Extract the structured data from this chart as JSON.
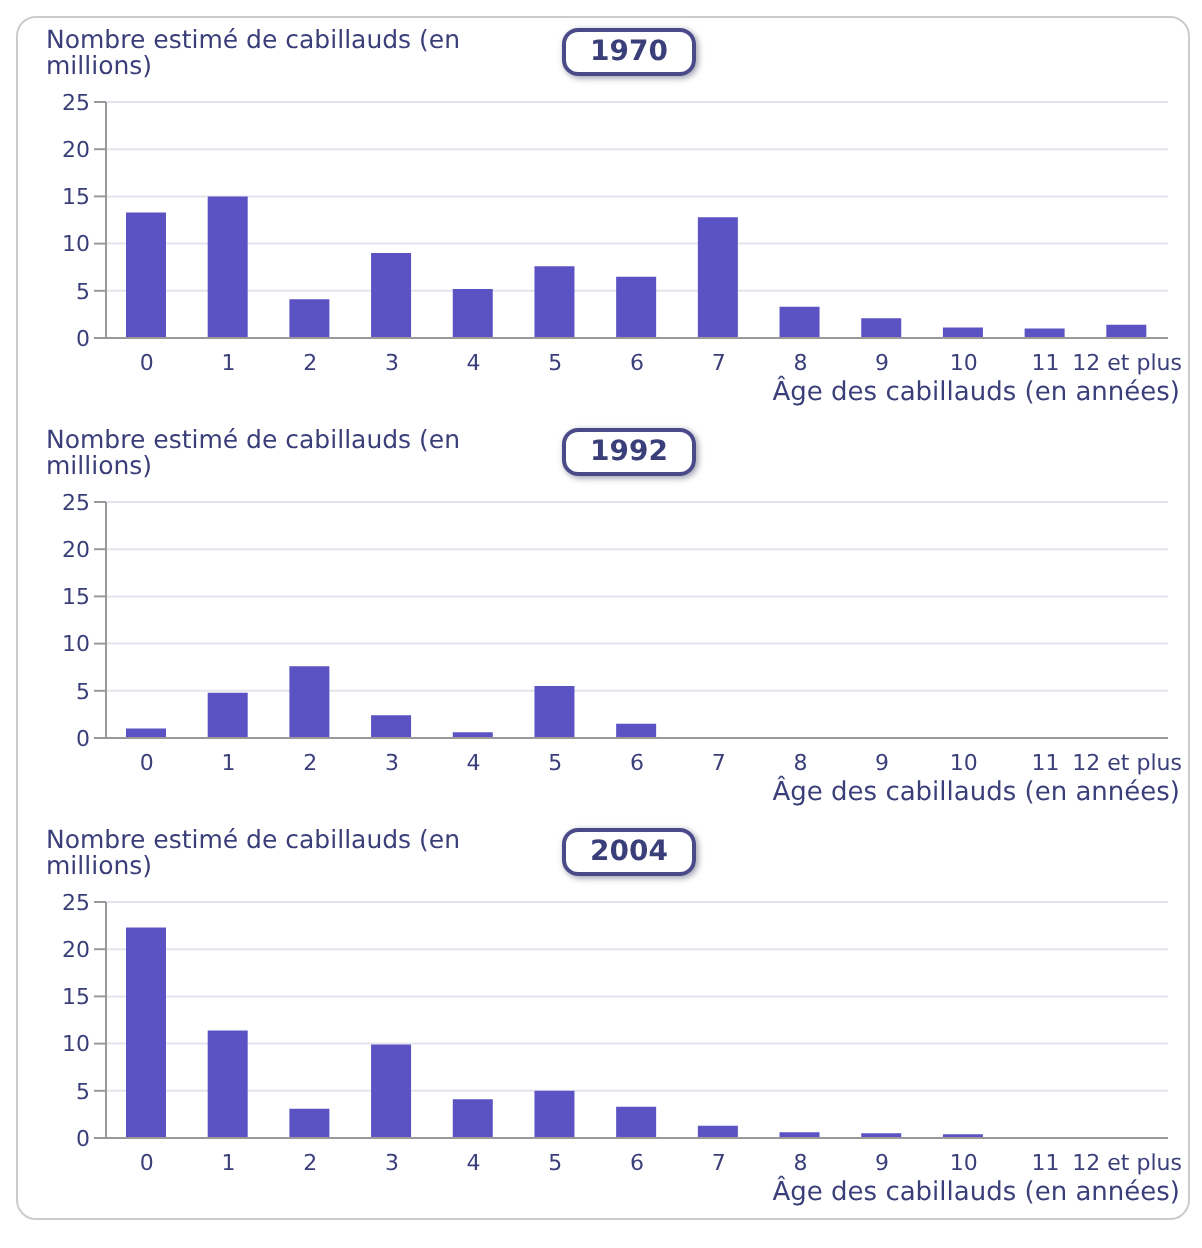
{
  "chart_data": [
    {
      "type": "bar",
      "title": "1970",
      "ylabel": "Nombre estimé de cabillauds (en millions)",
      "xlabel": "Âge des cabillauds (en années)",
      "categories": [
        "0",
        "1",
        "2",
        "3",
        "4",
        "5",
        "6",
        "7",
        "8",
        "9",
        "10",
        "11",
        "12 et plus"
      ],
      "series": [
        {
          "color": "#5b52c4",
          "values": [
            13.3,
            15,
            4.1,
            9,
            5.2,
            7.6,
            6.5,
            12.8,
            3.3,
            2.1,
            1.1,
            1,
            1.4
          ]
        }
      ],
      "ylim": [
        0,
        25
      ],
      "yticks": [
        0,
        5,
        10,
        15,
        20,
        25
      ],
      "grid": "y",
      "legend": false
    },
    {
      "type": "bar",
      "title": "1992",
      "ylabel": "Nombre estimé de cabillauds (en millions)",
      "xlabel": "Âge des cabillauds (en années)",
      "categories": [
        "0",
        "1",
        "2",
        "3",
        "4",
        "5",
        "6",
        "7",
        "8",
        "9",
        "10",
        "11",
        "12 et plus"
      ],
      "series": [
        {
          "color": "#5b52c4",
          "values": [
            1,
            4.8,
            7.6,
            2.4,
            0.6,
            5.5,
            1.5,
            null,
            null,
            null,
            null,
            null,
            null
          ]
        }
      ],
      "ylim": [
        0,
        25
      ],
      "yticks": [
        0,
        5,
        10,
        15,
        20,
        25
      ],
      "grid": "y",
      "legend": false
    },
    {
      "type": "bar",
      "title": "2004",
      "ylabel": "Nombre estimé de cabillauds (en millions)",
      "xlabel": "Âge des cabillauds (en années)",
      "categories": [
        "0",
        "1",
        "2",
        "3",
        "4",
        "5",
        "6",
        "7",
        "8",
        "9",
        "10",
        "11",
        "12 et plus"
      ],
      "series": [
        {
          "color": "#5b52c4",
          "values": [
            22.3,
            11.4,
            3.1,
            9.9,
            4.1,
            5,
            3.3,
            1.3,
            0.6,
            0.5,
            0.4,
            null,
            null
          ]
        }
      ],
      "ylim": [
        0,
        25
      ],
      "yticks": [
        0,
        5,
        10,
        15,
        20,
        25
      ],
      "grid": "y",
      "legend": false
    }
  ]
}
